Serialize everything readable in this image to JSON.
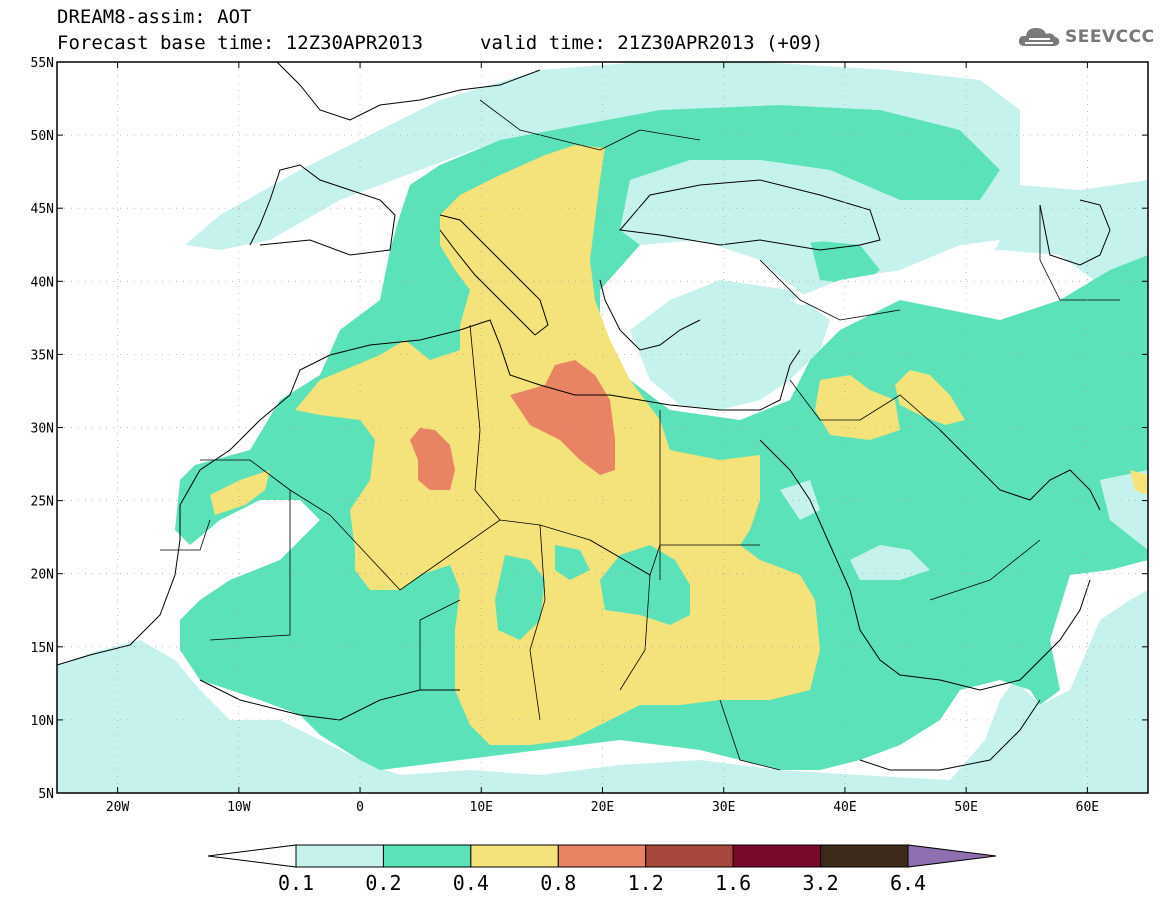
{
  "header": {
    "title": "DREAM8-assim: AOT",
    "base_time": "Forecast base time: 12Z30APR2013",
    "valid_time": "valid time: 21Z30APR2013 (+09)"
  },
  "logo": {
    "text": "SEEVCCC",
    "icon": "cloud-icon"
  },
  "map": {
    "projection": "equirectangular",
    "lon_range": [
      -25,
      65
    ],
    "lat_range": [
      5,
      55
    ],
    "lon_ticks": [
      {
        "value": -20,
        "label": "20W"
      },
      {
        "value": -10,
        "label": "10W"
      },
      {
        "value": 0,
        "label": "0"
      },
      {
        "value": 10,
        "label": "10E"
      },
      {
        "value": 20,
        "label": "20E"
      },
      {
        "value": 30,
        "label": "30E"
      },
      {
        "value": 40,
        "label": "40E"
      },
      {
        "value": 50,
        "label": "50E"
      },
      {
        "value": 60,
        "label": "60E"
      }
    ],
    "lat_ticks": [
      {
        "value": 55,
        "label": "55N"
      },
      {
        "value": 50,
        "label": "50N"
      },
      {
        "value": 45,
        "label": "45N"
      },
      {
        "value": 40,
        "label": "40N"
      },
      {
        "value": 35,
        "label": "35N"
      },
      {
        "value": 30,
        "label": "30N"
      },
      {
        "value": 25,
        "label": "25N"
      },
      {
        "value": 20,
        "label": "20N"
      },
      {
        "value": 15,
        "label": "15N"
      },
      {
        "value": 10,
        "label": "10N"
      },
      {
        "value": 5,
        "label": "5N"
      }
    ]
  },
  "colorbar": {
    "bins": [
      {
        "color": "#c6f2ee"
      },
      {
        "color": "#5ce2b8"
      },
      {
        "color": "#f4e27a"
      },
      {
        "color": "#e88363"
      },
      {
        "color": "#a8483c"
      },
      {
        "color": "#7a0a2a"
      },
      {
        "color": "#3d2a1a"
      }
    ],
    "under_color": "#ffffff",
    "over_color": "#8e6fb0",
    "labels": [
      "0.1",
      "0.2",
      "0.4",
      "0.8",
      "1.2",
      "1.6",
      "3.2",
      "6.4"
    ]
  }
}
